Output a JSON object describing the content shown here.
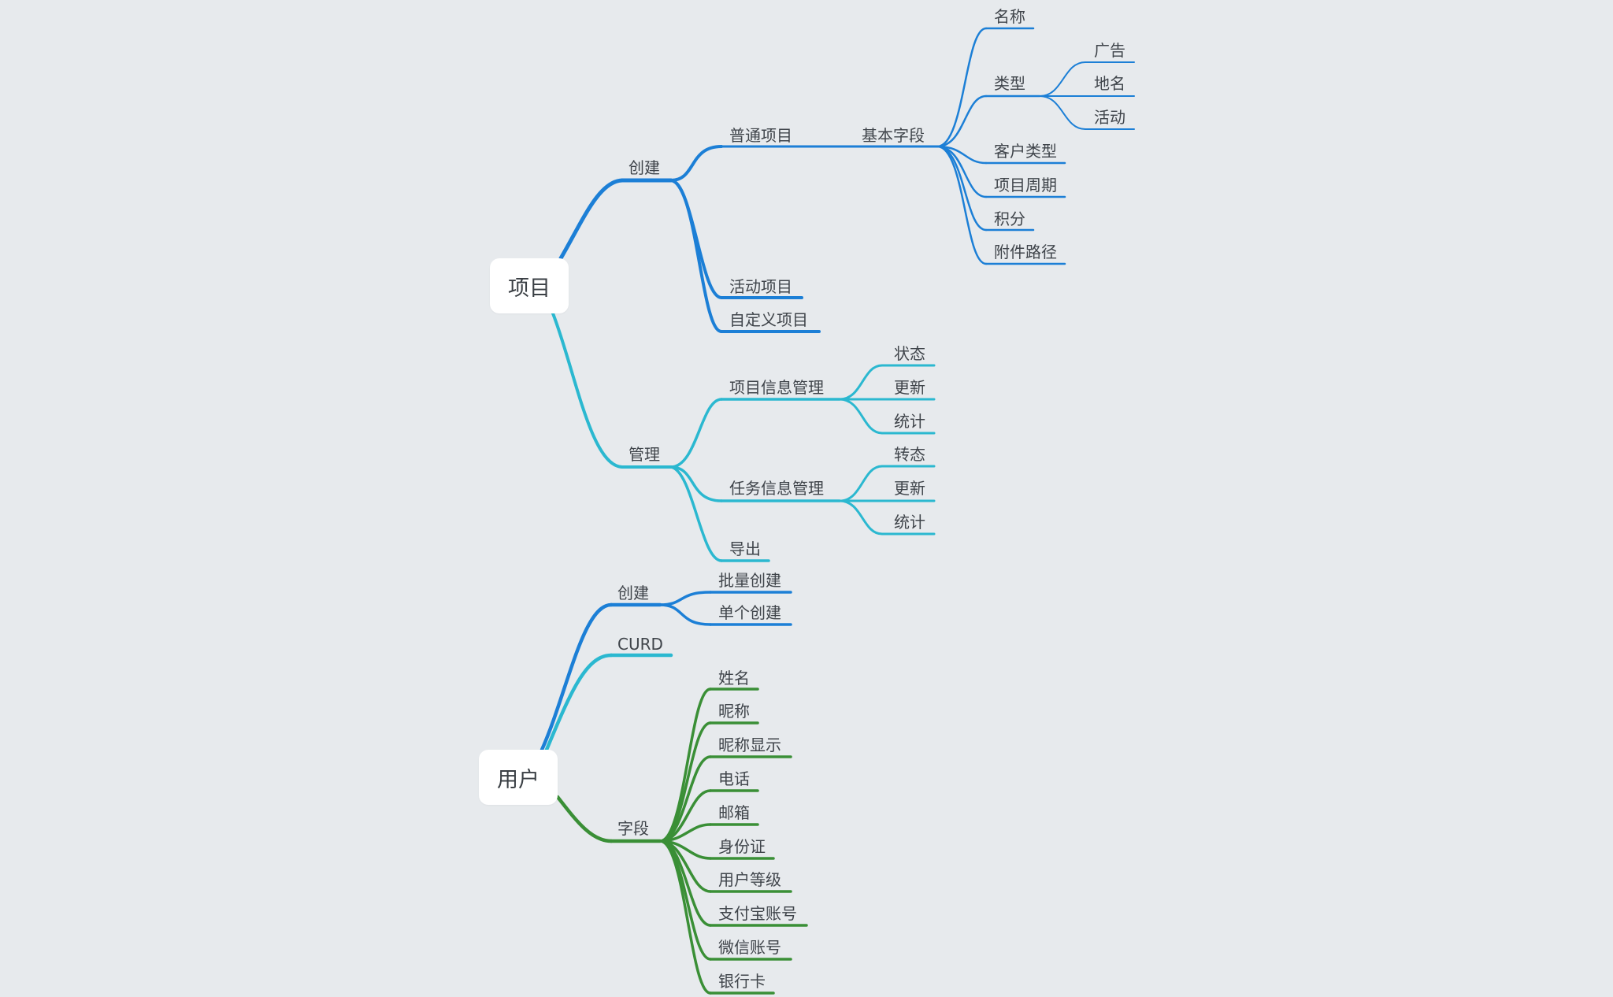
{
  "colors": {
    "background": "#e7eaed",
    "blue": "#1c7fd6",
    "cyan": "#2bb8d0",
    "green": "#3a8f36"
  },
  "roots": {
    "project": "项目",
    "user": "用户"
  },
  "project": {
    "create": {
      "label": "创建",
      "normal": {
        "label": "普通项目",
        "basic_fields": {
          "label": "基本字段",
          "name": "名称",
          "type": {
            "label": "类型",
            "children": [
              "广告",
              "地名",
              "活动"
            ]
          },
          "customer_type": "客户类型",
          "project_cycle": "项目周期",
          "points": "积分",
          "attachment_path": "附件路径"
        }
      },
      "activity": "活动项目",
      "custom": "自定义项目"
    },
    "manage": {
      "label": "管理",
      "info_mgmt": {
        "label": "项目信息管理",
        "children": [
          "状态",
          "更新",
          "统计"
        ]
      },
      "task_mgmt": {
        "label": "任务信息管理",
        "children": [
          "转态",
          "更新",
          "统计"
        ]
      },
      "export": "导出"
    }
  },
  "user": {
    "create": {
      "label": "创建",
      "children": [
        "批量创建",
        "单个创建"
      ]
    },
    "curd": "CURD",
    "fields": {
      "label": "字段",
      "children": [
        "姓名",
        "昵称",
        "昵称显示",
        "电话",
        "邮箱",
        "身份证",
        "用户等级",
        "支付宝账号",
        "微信账号",
        "银行卡"
      ]
    }
  }
}
